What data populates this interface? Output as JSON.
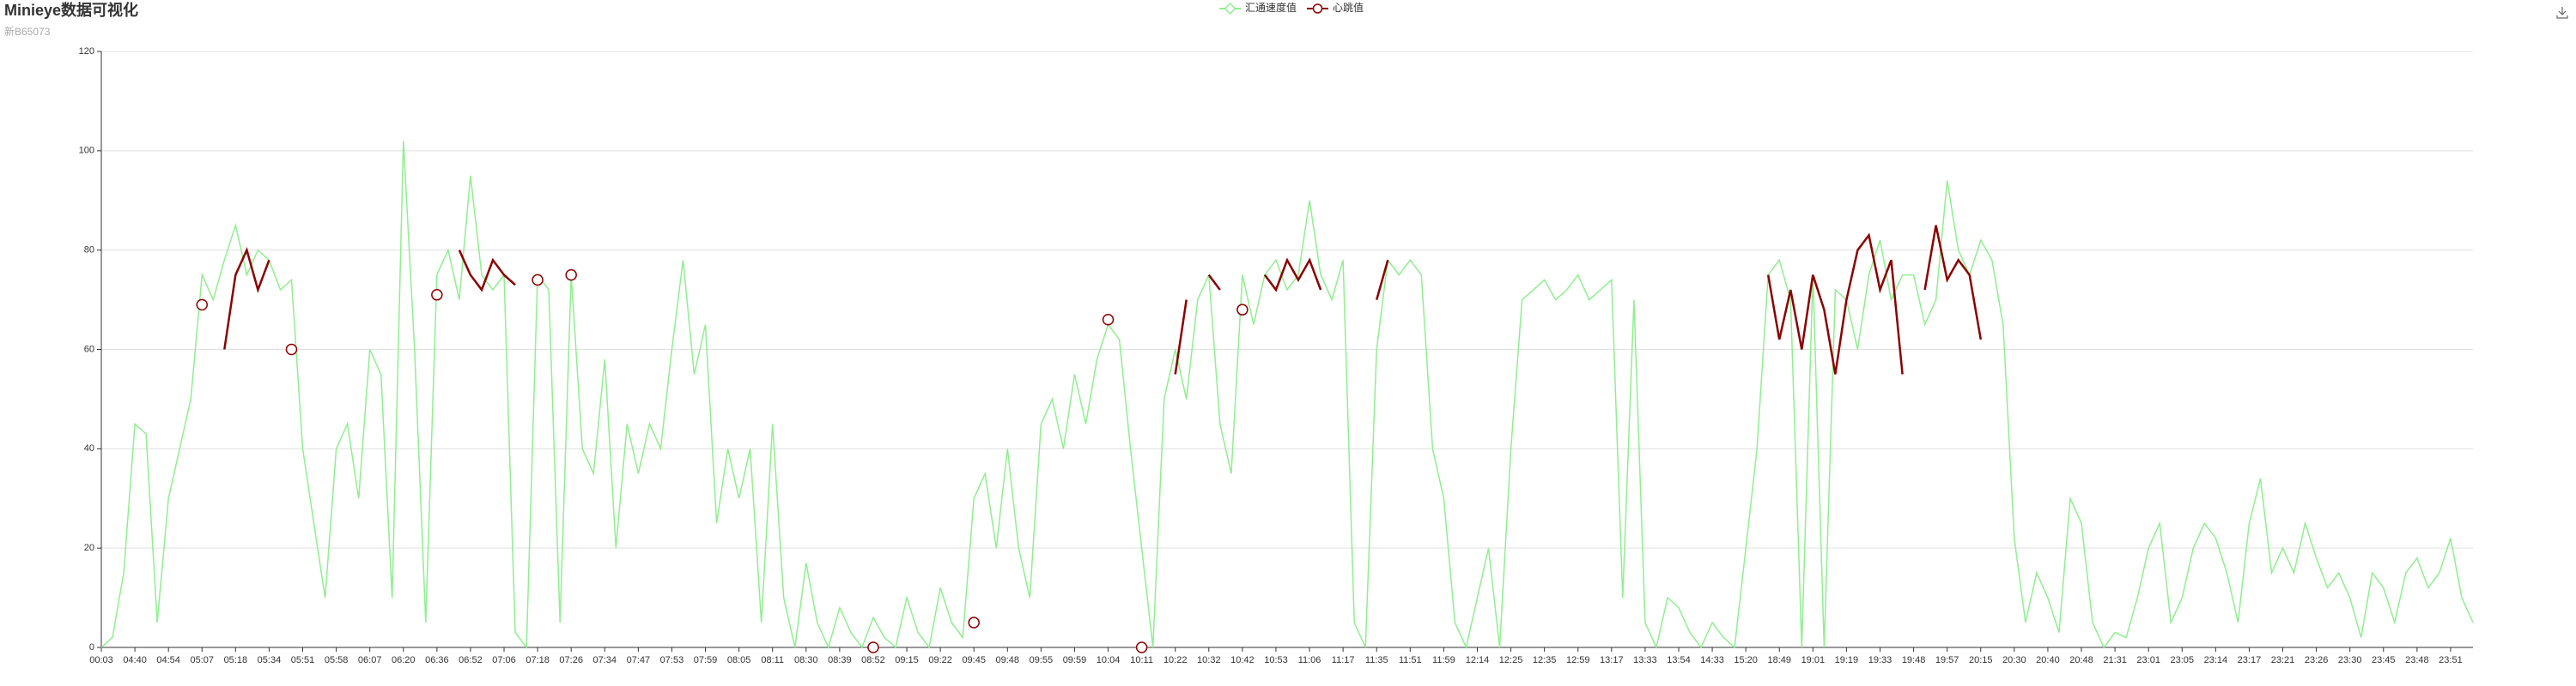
{
  "chart_data": {
    "type": "line",
    "title": "Minieye数据可视化",
    "subtitle": "新B65073",
    "categories": [
      "00:03",
      null,
      null,
      "04:40",
      null,
      null,
      "04:54",
      null,
      null,
      "05:07",
      null,
      null,
      "05:18",
      null,
      null,
      "05:34",
      null,
      null,
      "05:51",
      null,
      null,
      "05:58",
      null,
      null,
      "06:07",
      null,
      null,
      "06:20",
      null,
      null,
      "06:36",
      null,
      null,
      "06:52",
      null,
      null,
      "07:06",
      null,
      null,
      "07:18",
      null,
      null,
      "07:26",
      null,
      null,
      "07:34",
      null,
      null,
      "07:47",
      null,
      null,
      "07:53",
      null,
      null,
      "07:59",
      null,
      null,
      "08:05",
      null,
      null,
      "08:11",
      null,
      null,
      "08:30",
      null,
      null,
      "08:39",
      null,
      null,
      "08:52",
      null,
      null,
      "09:15",
      null,
      null,
      "09:22",
      null,
      null,
      "09:45",
      null,
      null,
      "09:48",
      null,
      null,
      "09:55",
      null,
      null,
      "09:59",
      null,
      null,
      "10:04",
      null,
      null,
      "10:11",
      null,
      null,
      "10:22",
      null,
      null,
      "10:32",
      null,
      null,
      "10:42",
      null,
      null,
      "10:53",
      null,
      null,
      "11:06",
      null,
      null,
      "11:17",
      null,
      null,
      "11:35",
      null,
      null,
      "11:51",
      null,
      null,
      "11:59",
      null,
      null,
      "12:14",
      null,
      null,
      "12:25",
      null,
      null,
      "12:35",
      null,
      null,
      "12:59",
      null,
      null,
      "13:17",
      null,
      null,
      "13:33",
      null,
      null,
      "13:54",
      null,
      null,
      "14:33",
      null,
      null,
      "15:20",
      null,
      null,
      "18:49",
      null,
      null,
      "19:01",
      null,
      null,
      "19:19",
      null,
      null,
      "19:33",
      null,
      null,
      "19:48",
      null,
      null,
      "19:57",
      null,
      null,
      "20:15",
      null,
      null,
      "20:30",
      null,
      null,
      "20:40",
      null,
      null,
      "20:48",
      null,
      null,
      "21:31",
      null,
      null,
      "23:01",
      null,
      null,
      "23:05",
      null,
      null,
      "23:14",
      null,
      null,
      "23:17",
      null,
      null,
      "23:21",
      null,
      null,
      "23:26",
      null,
      null,
      "23:30",
      null,
      null,
      "23:45",
      null,
      null,
      "23:48",
      null,
      null,
      "23:51",
      null,
      null
    ],
    "series": [
      {
        "name": "汇通速度值",
        "color": "#90ee90",
        "values": [
          0,
          2,
          15,
          45,
          43,
          5,
          30,
          40,
          50,
          75,
          70,
          78,
          85,
          75,
          80,
          78,
          72,
          74,
          40,
          25,
          10,
          40,
          45,
          30,
          60,
          55,
          10,
          102,
          60,
          5,
          75,
          80,
          70,
          95,
          75,
          72,
          75,
          3,
          0,
          75,
          72,
          5,
          75,
          40,
          35,
          58,
          20,
          45,
          35,
          45,
          40,
          60,
          78,
          55,
          65,
          25,
          40,
          30,
          40,
          5,
          45,
          10,
          0,
          17,
          5,
          0,
          8,
          3,
          0,
          6,
          2,
          0,
          10,
          3,
          0,
          12,
          5,
          2,
          30,
          35,
          20,
          40,
          20,
          10,
          45,
          50,
          40,
          55,
          45,
          58,
          65,
          62,
          40,
          20,
          0,
          50,
          60,
          50,
          70,
          75,
          45,
          35,
          75,
          65,
          75,
          78,
          72,
          75,
          90,
          75,
          70,
          78,
          5,
          0,
          60,
          78,
          75,
          78,
          75,
          40,
          30,
          5,
          0,
          10,
          20,
          0,
          40,
          70,
          72,
          74,
          70,
          72,
          75,
          70,
          72,
          74,
          10,
          70,
          5,
          0,
          10,
          8,
          3,
          0,
          5,
          2,
          0,
          20,
          40,
          75,
          78,
          70,
          0,
          75,
          0,
          72,
          70,
          60,
          75,
          82,
          70,
          75,
          75,
          65,
          70,
          94,
          80,
          75,
          82,
          78,
          65,
          22,
          5,
          15,
          10,
          3,
          30,
          25,
          5,
          0,
          3,
          2,
          10,
          20,
          25,
          5,
          10,
          20,
          25,
          22,
          15,
          5,
          25,
          34,
          15,
          20,
          15,
          25,
          18,
          12,
          15,
          10,
          2,
          15,
          12,
          5,
          15,
          18,
          12,
          15,
          22,
          10,
          5
        ]
      },
      {
        "name": "心跳值",
        "color": "#8b0000",
        "values": [
          null,
          null,
          null,
          null,
          null,
          null,
          null,
          null,
          null,
          69,
          null,
          60,
          75,
          80,
          72,
          78,
          null,
          60,
          null,
          null,
          null,
          null,
          null,
          null,
          null,
          null,
          null,
          null,
          null,
          null,
          71,
          null,
          80,
          75,
          72,
          78,
          75,
          73,
          null,
          74,
          null,
          null,
          75,
          null,
          null,
          null,
          null,
          null,
          null,
          null,
          null,
          null,
          null,
          null,
          null,
          null,
          null,
          null,
          null,
          null,
          null,
          null,
          null,
          null,
          null,
          null,
          null,
          null,
          null,
          0,
          null,
          null,
          null,
          null,
          null,
          null,
          null,
          null,
          5,
          null,
          null,
          null,
          null,
          null,
          null,
          null,
          null,
          null,
          null,
          null,
          66,
          null,
          null,
          0,
          null,
          null,
          55,
          70,
          null,
          75,
          72,
          null,
          68,
          null,
          75,
          72,
          78,
          74,
          78,
          72,
          null,
          null,
          null,
          null,
          70,
          78,
          null,
          null,
          null,
          null,
          null,
          null,
          null,
          null,
          null,
          null,
          null,
          null,
          null,
          null,
          null,
          null,
          null,
          null,
          null,
          null,
          null,
          null,
          null,
          null,
          null,
          null,
          null,
          null,
          null,
          null,
          null,
          null,
          null,
          75,
          62,
          72,
          60,
          75,
          68,
          55,
          70,
          80,
          83,
          72,
          78,
          55,
          null,
          72,
          85,
          74,
          78,
          75,
          62,
          null,
          null,
          null,
          null,
          null,
          null,
          null,
          null,
          null,
          null,
          null,
          null,
          null,
          null,
          null,
          null,
          null,
          null,
          null,
          null,
          null,
          null,
          null,
          null,
          null,
          null,
          null,
          null,
          null,
          null,
          null,
          null,
          null,
          null,
          null,
          null,
          null,
          null,
          null,
          null,
          null,
          null,
          null,
          null
        ]
      }
    ],
    "ylim": [
      0,
      120
    ],
    "yticks": [
      0,
      20,
      40,
      60,
      80,
      100,
      120
    ],
    "grid": true
  }
}
